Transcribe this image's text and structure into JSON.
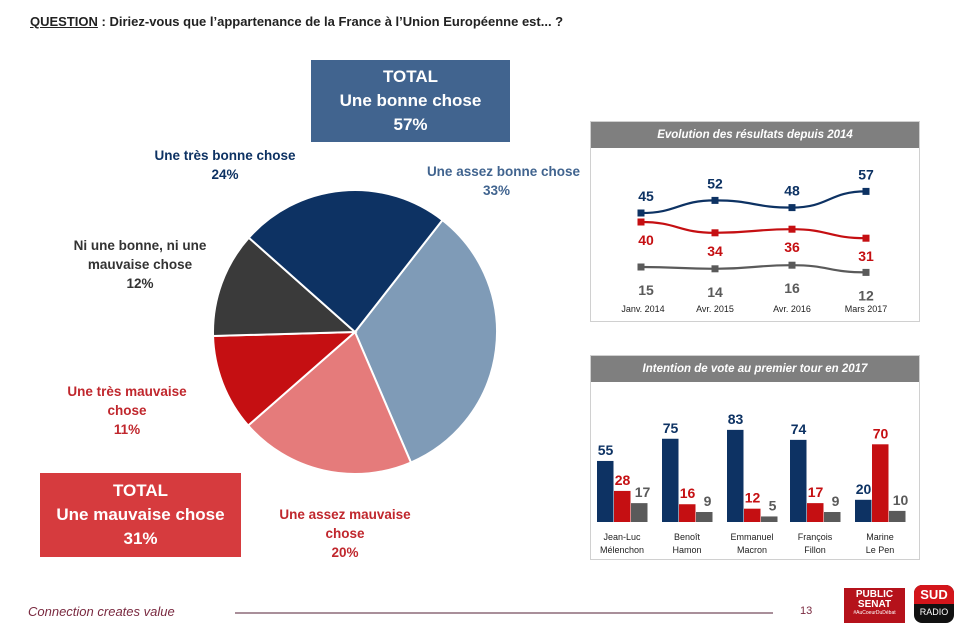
{
  "question": {
    "label": "QUESTION",
    "text": " : Diriez-vous que l’appartenance de la France à l’Union Européenne est... ?"
  },
  "total_good": {
    "line1": "TOTAL",
    "line2": "Une bonne chose",
    "line3": "57%",
    "color": "#41648f"
  },
  "total_bad": {
    "line1": "TOTAL",
    "line2": "Une mauvaise chose",
    "line3": "31%",
    "color": "#d63b3e"
  },
  "chart_data": [
    {
      "type": "pie",
      "slices": [
        {
          "label": "Une très bonne chose",
          "value": 24,
          "color": "#0d3263",
          "text_color": "#0d3263"
        },
        {
          "label": "Une assez bonne chose",
          "value": 33,
          "color": "#7f9bb7",
          "text_color": "#41648f"
        },
        {
          "label": "Une assez mauvaise chose",
          "value": 20,
          "color": "#e57b7b",
          "text_color": "#c0272d"
        },
        {
          "label": "Une très mauvaise chose",
          "value": 11,
          "color": "#c50f12",
          "text_color": "#c0272d"
        },
        {
          "label": "Ni une bonne, ni une mauvaise chose",
          "value": 12,
          "color": "#3a3a3a",
          "text_color": "#333333"
        }
      ]
    },
    {
      "type": "line",
      "title": "Evolution des résultats depuis 2014",
      "categories": [
        "Janv. 2014",
        "Avr. 2015",
        "Avr. 2016",
        "Mars 2017"
      ],
      "series": [
        {
          "values": [
            45,
            52,
            48,
            57
          ],
          "color": "#0d3263"
        },
        {
          "values": [
            40,
            34,
            36,
            31
          ],
          "color": "#c50f12"
        },
        {
          "values": [
            15,
            14,
            16,
            12
          ],
          "color": "#5a5a5a"
        }
      ]
    },
    {
      "type": "bar",
      "title": "Intention de vote au premier tour en 2017",
      "categories": [
        [
          "Jean-Luc",
          "Mélenchon"
        ],
        [
          "Benoît",
          "Hamon"
        ],
        [
          "Emmanuel",
          "Macron"
        ],
        [
          "François",
          "Fillon"
        ],
        [
          "Marine",
          "Le Pen"
        ]
      ],
      "series": [
        {
          "values": [
            55,
            75,
            83,
            74,
            20
          ],
          "color": "#0d3263"
        },
        {
          "values": [
            28,
            16,
            12,
            17,
            70
          ],
          "color": "#c50f12"
        },
        {
          "values": [
            17,
            9,
            5,
            9,
            10
          ],
          "color": "#5a5a5a"
        }
      ]
    }
  ],
  "footer": {
    "tagline": "Connection creates value",
    "page": "13",
    "logo1": "PUBLIC SENAT #AuCoeurDuDébat",
    "logo2": "SUD RADIO"
  }
}
